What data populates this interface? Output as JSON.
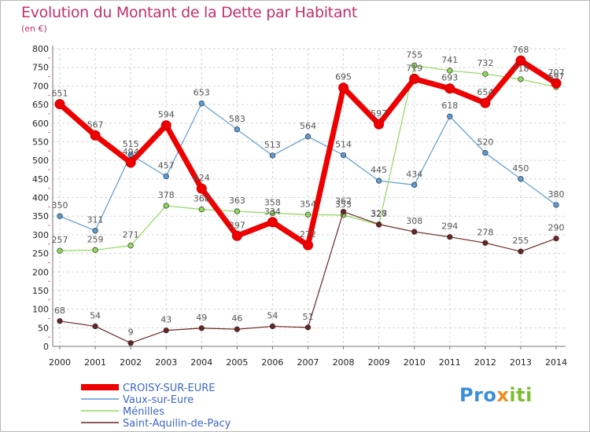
{
  "title": "Evolution du Montant de la Dette par Habitant",
  "subtitle": "(en €)",
  "logo": {
    "part1": "Pro",
    "part2": "x",
    "part3": "iti"
  },
  "chart_data": {
    "type": "line",
    "title": "Evolution du Montant de la Dette par Habitant",
    "subtitle": "(en €)",
    "x": [
      "2000",
      "2001",
      "2002",
      "2003",
      "2004",
      "2005",
      "2006",
      "2007",
      "2008",
      "2009",
      "2010",
      "2011",
      "2012",
      "2013",
      "2014"
    ],
    "ylim": [
      0,
      800
    ],
    "yticks": [
      0,
      50,
      100,
      150,
      200,
      250,
      300,
      350,
      400,
      450,
      500,
      550,
      600,
      650,
      700,
      750,
      800
    ],
    "grid": true,
    "legend_position": "bottom-left",
    "series": [
      {
        "name": "CROISY-SUR-EURE",
        "color": "#ee0000",
        "bold": true,
        "values": [
          651,
          567,
          494,
          594,
          424,
          297,
          334,
          272,
          695,
          597,
          719,
          693,
          654,
          768,
          707
        ]
      },
      {
        "name": "Vaux-sur-Eure",
        "color": "#5b9bd5",
        "values": [
          350,
          311,
          515,
          457,
          653,
          583,
          513,
          564,
          514,
          445,
          434,
          618,
          520,
          450,
          380
        ]
      },
      {
        "name": "Ménilles",
        "color": "#8fd85a",
        "values": [
          257,
          259,
          271,
          378,
          368,
          363,
          358,
          354,
          353,
          327,
          755,
          741,
          732,
          718,
          697
        ]
      },
      {
        "name": "Saint-Aquilin-de-Pacy",
        "color": "#6b2424",
        "values": [
          68,
          54,
          9,
          43,
          49,
          46,
          54,
          51,
          362,
          328,
          308,
          294,
          278,
          255,
          290
        ]
      }
    ]
  }
}
